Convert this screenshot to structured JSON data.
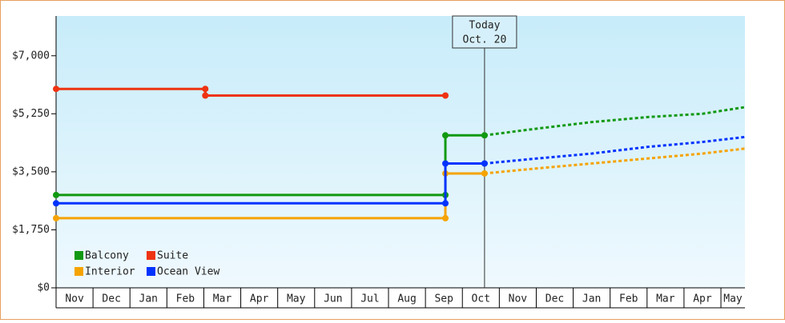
{
  "chart_data": {
    "type": "line",
    "categories": [
      "Nov",
      "Dec",
      "Jan",
      "Feb",
      "Mar",
      "Apr",
      "May",
      "Jun",
      "Jul",
      "Aug",
      "Sep",
      "Oct",
      "Nov",
      "Dec",
      "Jan",
      "Feb",
      "Mar",
      "Apr",
      "May"
    ],
    "xlim": [
      0,
      18.65
    ],
    "ylim": [
      0,
      8200
    ],
    "yticks": [
      {
        "value": 0,
        "label": "$0"
      },
      {
        "value": 1750,
        "label": "$1,750"
      },
      {
        "value": 3500,
        "label": "$3,500"
      },
      {
        "value": 5250,
        "label": "$5,250"
      },
      {
        "value": 7000,
        "label": "$7,000"
      }
    ],
    "today_label": "Today",
    "today_date": "Oct. 20",
    "today_x": 11.6,
    "series": [
      {
        "name": "Balcony",
        "color": "#119911",
        "x": [
          0,
          10.54,
          10.54,
          11.6
        ],
        "values": [
          2800,
          2800,
          4600,
          4600
        ],
        "projection": {
          "x": [
            11.6,
            13,
            14.5,
            16,
            17.5,
            18.65
          ],
          "values": [
            4600,
            4800,
            5000,
            5150,
            5250,
            5450
          ]
        }
      },
      {
        "name": "Suite",
        "color": "#ee3311",
        "x": [
          0,
          4.04,
          4.04,
          10.54
        ],
        "values": [
          6000,
          6000,
          5800,
          5800
        ]
      },
      {
        "name": "Interior",
        "color": "#f5a300",
        "x": [
          0,
          10.54,
          10.54,
          11.6
        ],
        "values": [
          2100,
          2100,
          3450,
          3450
        ],
        "projection": {
          "x": [
            11.6,
            13,
            14.5,
            16,
            17.5,
            18.65
          ],
          "values": [
            3450,
            3600,
            3750,
            3900,
            4050,
            4200
          ]
        }
      },
      {
        "name": "Ocean View",
        "color": "#0033ff",
        "x": [
          0,
          10.54,
          10.54,
          11.6
        ],
        "values": [
          2550,
          2550,
          3750,
          3750
        ],
        "projection": {
          "x": [
            11.6,
            13,
            14.5,
            16,
            17.5,
            18.65
          ],
          "values": [
            3750,
            3900,
            4050,
            4250,
            4400,
            4550
          ]
        }
      }
    ]
  }
}
